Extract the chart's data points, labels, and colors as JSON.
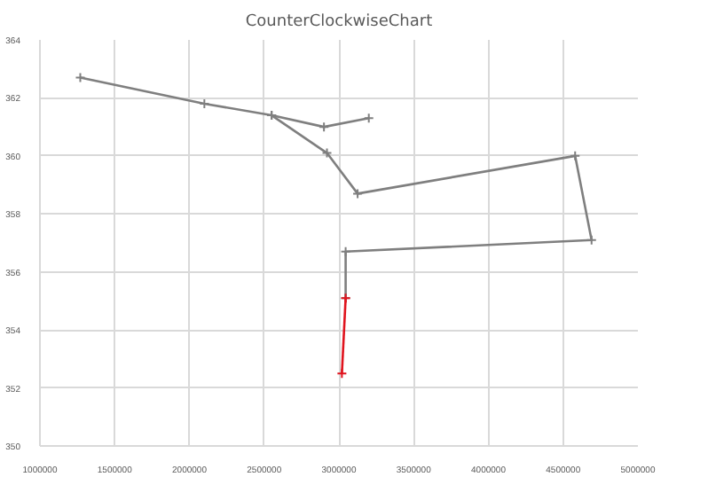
{
  "chart_data": {
    "type": "line",
    "title": "CounterClockwiseChart",
    "series": [
      {
        "color": "#7f7f7f",
        "x": [
          3200000,
          2900000,
          2550000,
          2100000,
          1270000
        ],
        "values": [
          361.3,
          361.0,
          361.4,
          361.8,
          362.7
        ]
      },
      {
        "color": "#7f7f7f",
        "x": [
          2550000,
          2920000,
          3125000,
          4580000,
          4690000,
          3045000,
          3045000
        ],
        "values": [
          361.4,
          360.1,
          358.7,
          360.0,
          357.1,
          356.7,
          355.1
        ]
      },
      {
        "color": "#e0141e",
        "x": [
          3045000,
          3020000
        ],
        "values": [
          355.1,
          352.5
        ]
      }
    ],
    "xlim": [
      1000000,
      5000000
    ],
    "xticks": [
      1000000,
      1500000,
      2000000,
      2500000,
      3000000,
      3500000,
      4000000,
      4500000,
      5000000
    ],
    "ylim": [
      350,
      364
    ],
    "yticks": [
      350,
      352,
      354,
      356,
      358,
      360,
      362,
      364
    ],
    "grid": true,
    "marker": "cross",
    "line_style": "solid"
  }
}
